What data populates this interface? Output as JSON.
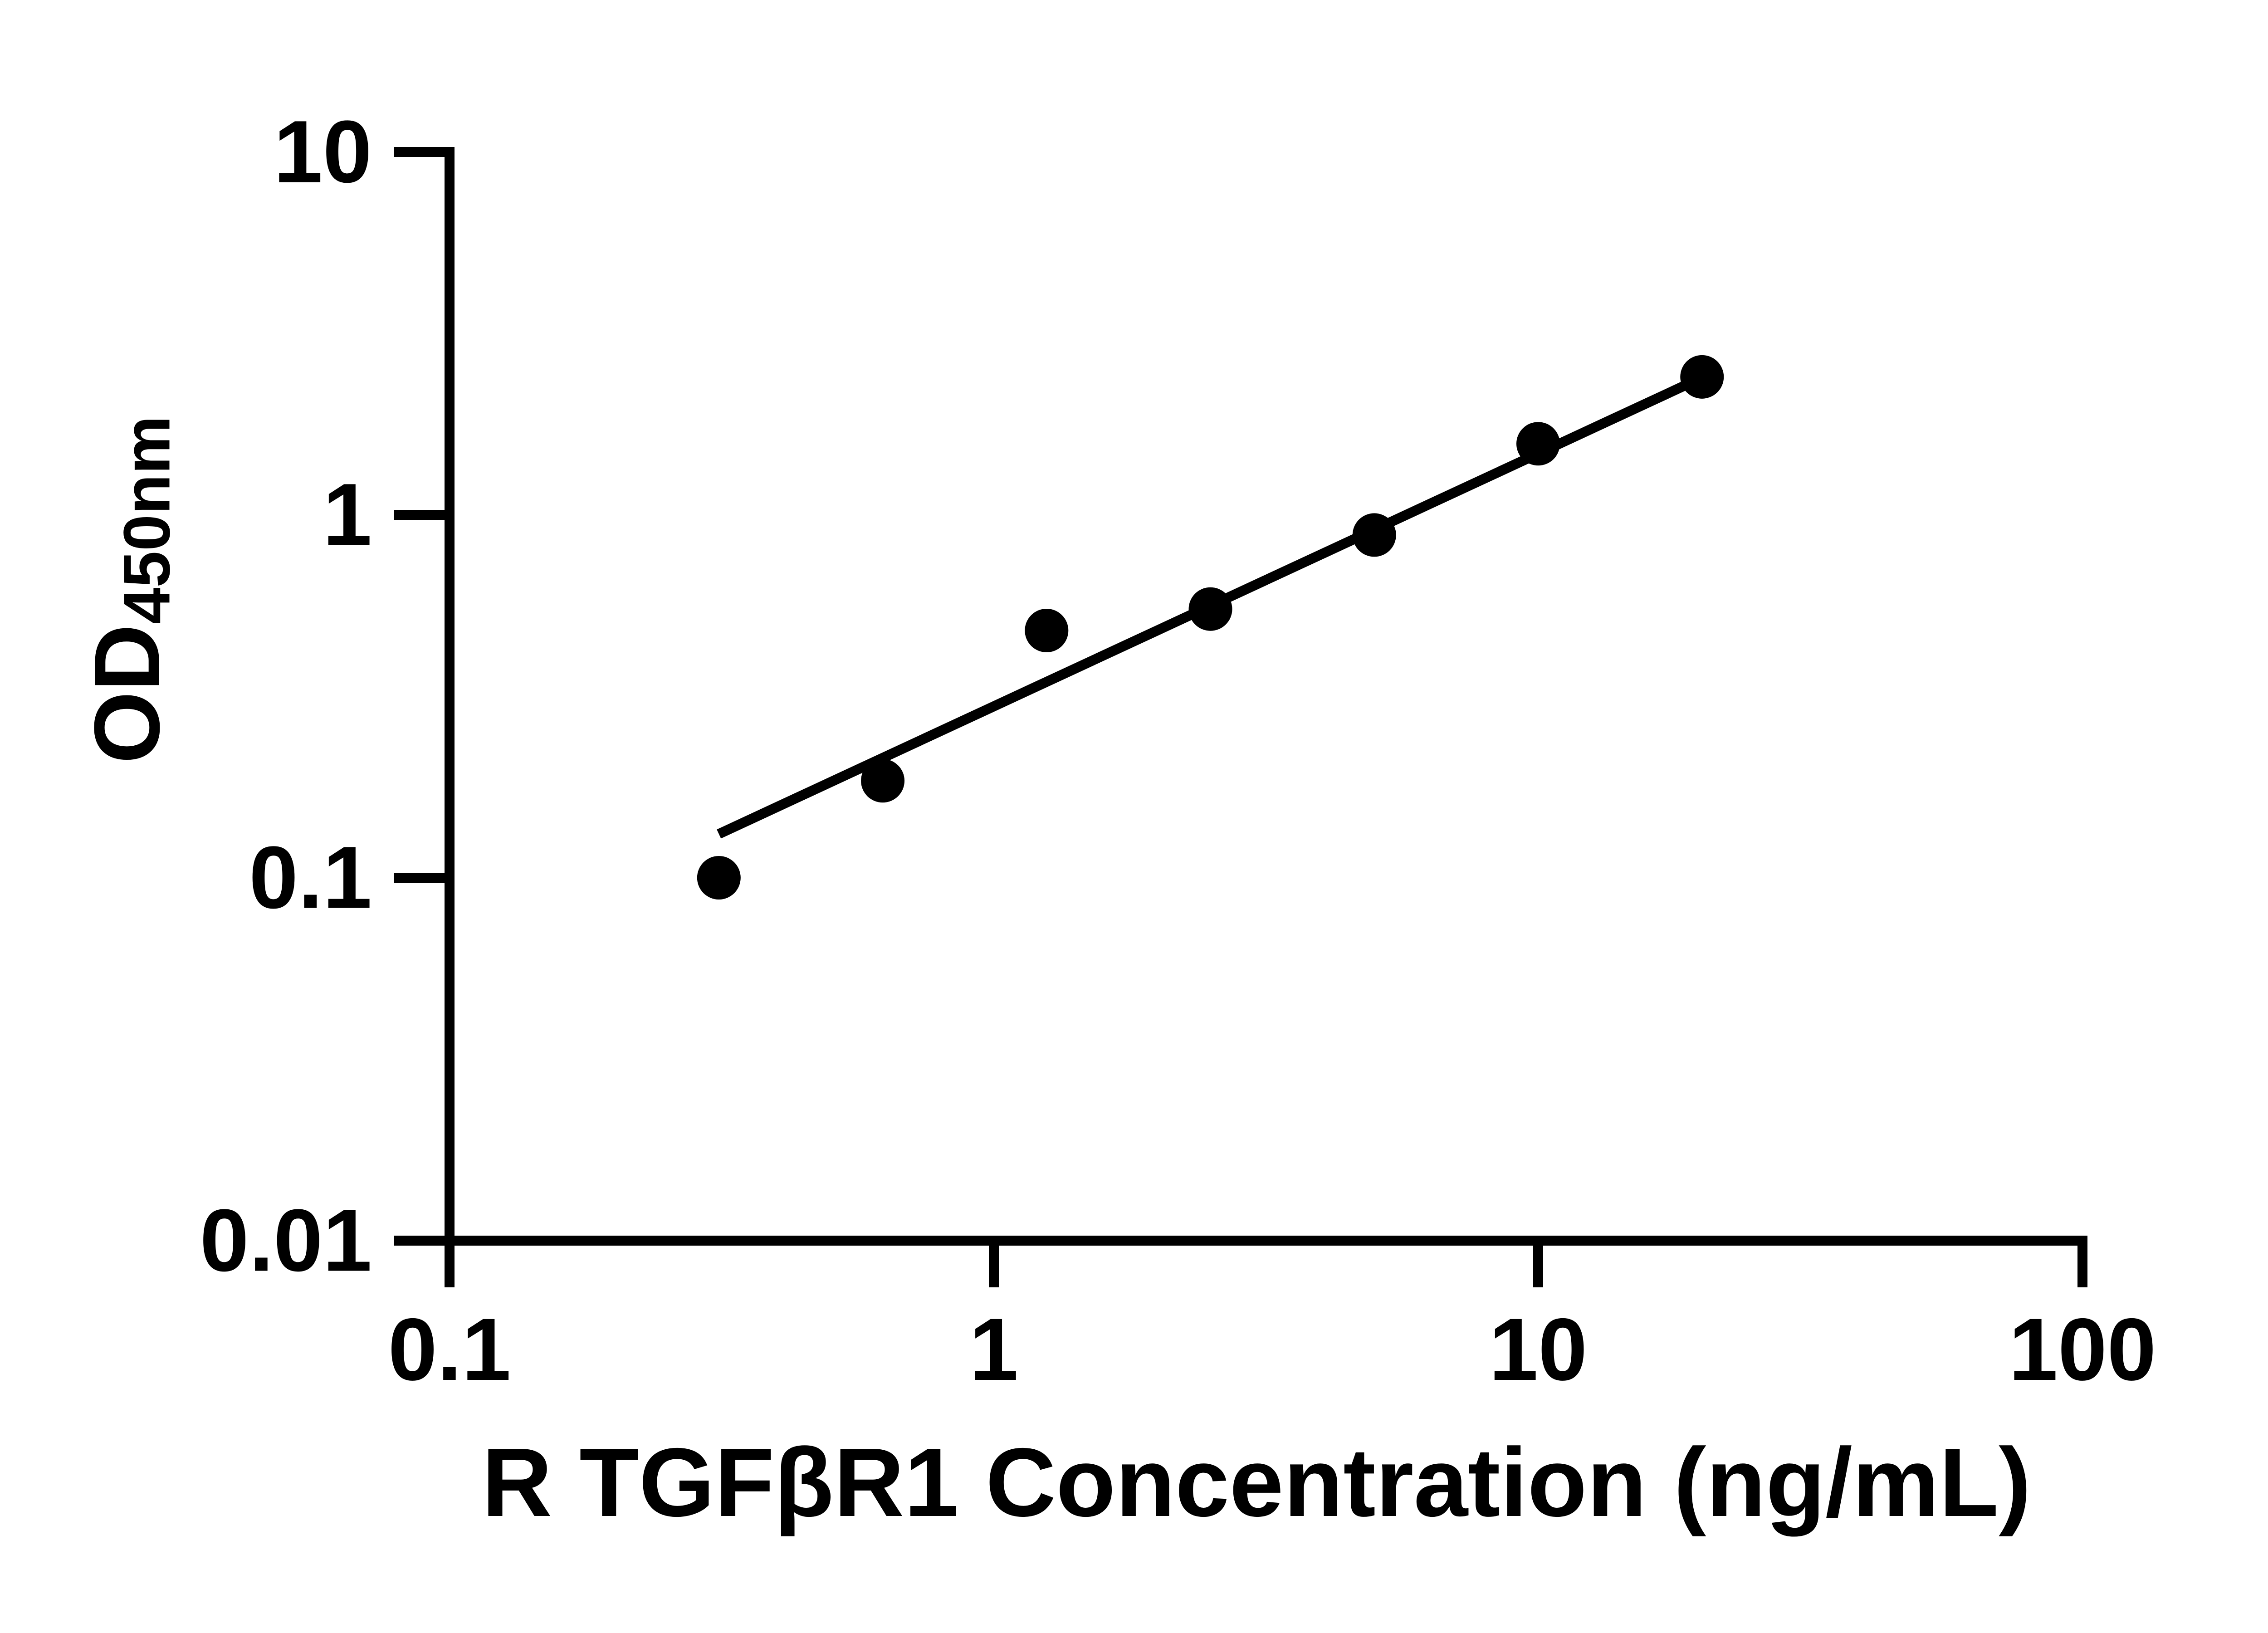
{
  "figure": {
    "x_axis_title": "R TGFβR1 Concentration (ng/mL)",
    "y_axis_title_main": "OD",
    "y_axis_title_sub": "450nm"
  },
  "chart_data": {
    "type": "scatter",
    "title": "",
    "xlabel": "R TGFβR1 Concentration (ng/mL)",
    "ylabel": "OD450nm",
    "x_scale": "log",
    "y_scale": "log",
    "xlim": [
      0.1,
      100
    ],
    "ylim": [
      0.01,
      10
    ],
    "grid": false,
    "legend_position": "none",
    "marker_color": "#000000",
    "line_color": "#000000",
    "axis_color": "#000000",
    "x_ticks": [
      {
        "value": 0.1,
        "label": "0.1"
      },
      {
        "value": 1,
        "label": "1"
      },
      {
        "value": 10,
        "label": "10"
      },
      {
        "value": 100,
        "label": "100"
      }
    ],
    "y_ticks": [
      {
        "value": 10,
        "label": "10"
      },
      {
        "value": 1,
        "label": "1"
      },
      {
        "value": 0.1,
        "label": "0.1"
      },
      {
        "value": 0.01,
        "label": "0.01"
      }
    ],
    "points": [
      {
        "x": 0.3125,
        "y": 0.1
      },
      {
        "x": 0.625,
        "y": 0.185
      },
      {
        "x": 1.25,
        "y": 0.48
      },
      {
        "x": 2.5,
        "y": 0.55
      },
      {
        "x": 5,
        "y": 0.88
      },
      {
        "x": 10,
        "y": 1.57
      },
      {
        "x": 20,
        "y": 2.4
      }
    ],
    "fit_line": {
      "x_start": 0.3125,
      "y_start": 0.132,
      "x_end": 20,
      "y_end": 2.39
    }
  }
}
